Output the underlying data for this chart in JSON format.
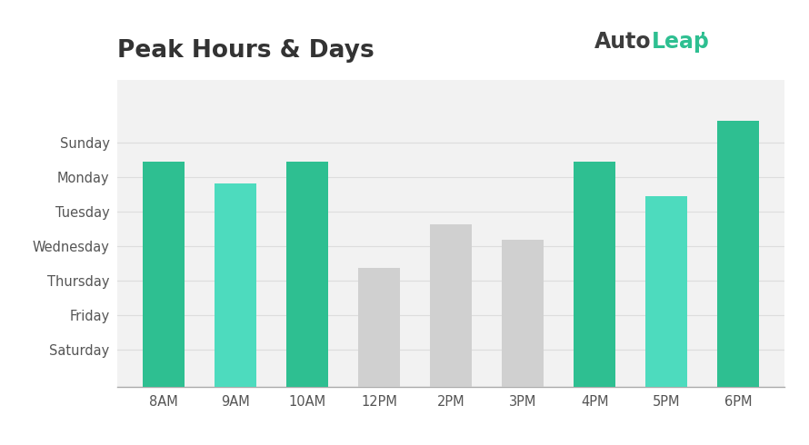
{
  "title": "Peak Hours & Days",
  "categories": [
    "8AM",
    "9AM",
    "10AM",
    "12PM",
    "2PM",
    "3PM",
    "4PM",
    "5PM",
    "6PM"
  ],
  "values": [
    7.2,
    6.5,
    7.2,
    3.8,
    5.2,
    4.7,
    7.2,
    6.1,
    8.5
  ],
  "bar_colors": [
    "#2EBF91",
    "#4DDBBE",
    "#2EBF91",
    "#D0D0D0",
    "#D0D0D0",
    "#D0D0D0",
    "#2EBF91",
    "#4DDBBE",
    "#2EBF91"
  ],
  "ytick_labels": [
    "Sunday",
    "Monday",
    "Tuesday",
    "Wednesday",
    "Thursday",
    "Friday",
    "Saturday"
  ],
  "ytick_positions": [
    7.8,
    6.7,
    5.6,
    4.5,
    3.4,
    2.3,
    1.2
  ],
  "ylim": [
    0,
    9.8
  ],
  "background_color": "#F2F2F2",
  "plot_bg_color": "#F2F2F2",
  "grid_color": "#DDDDDD",
  "title_color": "#333333",
  "tick_color": "#555555",
  "logo_auto_color": "#3D3D3D",
  "logo_leap_color": "#2EBF91",
  "logo_mark": "'"
}
